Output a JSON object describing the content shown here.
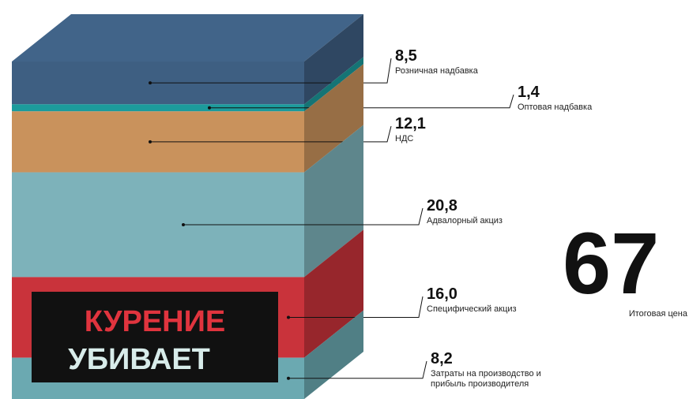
{
  "chart_data": {
    "type": "stack",
    "series": [
      {
        "name": "Розничная надбавка",
        "color": "#3e5f82",
        "values": [
          8.5
        ],
        "value_labels": [
          "8,5"
        ]
      },
      {
        "name": "Оптовая надбавка",
        "color": "#1c9b9c",
        "values": [
          1.4
        ],
        "value_labels": [
          "1,4"
        ]
      },
      {
        "name": "НДС",
        "color": "#c9925c",
        "values": [
          12.1
        ],
        "value_labels": [
          "12,1"
        ]
      },
      {
        "name": "Адвалорный акциз",
        "color": "#7db2ba",
        "values": [
          20.8
        ],
        "value_labels": [
          "20,8"
        ]
      },
      {
        "name": "Специфический акциз",
        "color": "#c9333b",
        "values": [
          16.0
        ],
        "value_labels": [
          "16,0"
        ]
      },
      {
        "name": "Затраты на производство и прибыль производителя",
        "color": "#6ba9b1",
        "values": [
          8.2
        ],
        "value_labels": [
          "8,2"
        ]
      }
    ],
    "total": {
      "value": 67,
      "label": "Итоговая цена"
    },
    "warning": [
      "КУРЕНИЕ",
      "УБИВАЕТ"
    ]
  }
}
